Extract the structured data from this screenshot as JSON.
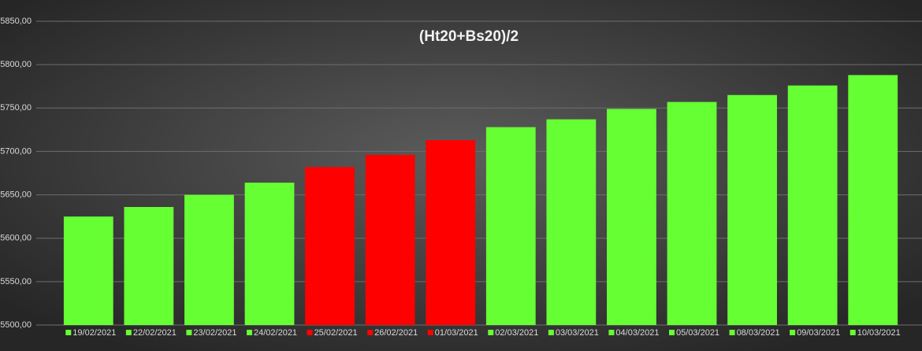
{
  "chart_data": {
    "type": "bar",
    "title": "(Ht20+Bs20)/2",
    "categories": [
      "19/02/2021",
      "22/02/2021",
      "23/02/2021",
      "24/02/2021",
      "25/02/2021",
      "26/02/2021",
      "01/03/2021",
      "02/03/2021",
      "03/03/2021",
      "04/03/2021",
      "05/03/2021",
      "08/03/2021",
      "09/03/2021",
      "10/03/2021"
    ],
    "values": [
      5625,
      5636,
      5650,
      5664,
      5682,
      5696,
      5713,
      5728,
      5737,
      5749,
      5757,
      5765,
      5776,
      5788
    ],
    "colors": [
      "#66ff33",
      "#66ff33",
      "#66ff33",
      "#66ff33",
      "#ff0000",
      "#ff0000",
      "#ff0000",
      "#66ff33",
      "#66ff33",
      "#66ff33",
      "#66ff33",
      "#66ff33",
      "#66ff33",
      "#66ff33"
    ],
    "ylim": [
      5500,
      5850
    ],
    "yticks": [
      {
        "value": 5500,
        "label": "5500,00"
      },
      {
        "value": 5550,
        "label": "5550,00"
      },
      {
        "value": 5600,
        "label": "5600,00"
      },
      {
        "value": 5650,
        "label": "5650,00"
      },
      {
        "value": 5700,
        "label": "5700,00"
      },
      {
        "value": 5750,
        "label": "5750,00"
      },
      {
        "value": 5800,
        "label": "5800,00"
      },
      {
        "value": 5850,
        "label": "5850,00"
      }
    ],
    "grid": true
  }
}
